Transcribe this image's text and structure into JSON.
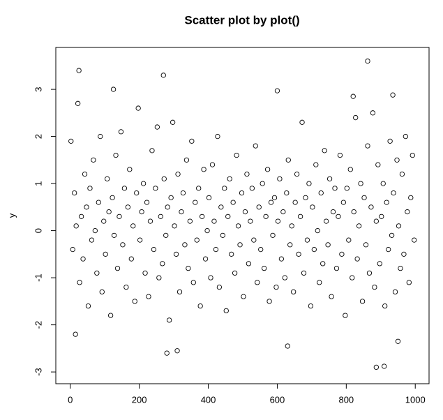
{
  "chart_data": {
    "type": "scatter",
    "title": "Scatter plot by plot()",
    "y_label": "y",
    "x": [
      2,
      7,
      12,
      17,
      22,
      27,
      32,
      37,
      42,
      47,
      52,
      57,
      62,
      67,
      72,
      77,
      82,
      87,
      92,
      97,
      102,
      107,
      112,
      117,
      122,
      127,
      132,
      137,
      142,
      147,
      152,
      157,
      162,
      167,
      172,
      177,
      182,
      187,
      192,
      197,
      202,
      207,
      212,
      217,
      222,
      227,
      232,
      237,
      242,
      247,
      252,
      257,
      262,
      267,
      272,
      277,
      282,
      287,
      292,
      297,
      302,
      307,
      312,
      317,
      322,
      327,
      332,
      337,
      342,
      347,
      352,
      357,
      362,
      367,
      372,
      377,
      382,
      387,
      392,
      397,
      402,
      407,
      412,
      417,
      422,
      427,
      432,
      437,
      442,
      447,
      452,
      457,
      462,
      467,
      472,
      477,
      482,
      487,
      492,
      497,
      502,
      507,
      512,
      517,
      522,
      527,
      532,
      537,
      542,
      547,
      552,
      557,
      562,
      567,
      572,
      577,
      582,
      587,
      592,
      597,
      602,
      607,
      612,
      617,
      622,
      627,
      632,
      637,
      642,
      647,
      652,
      657,
      662,
      667,
      672,
      677,
      682,
      687,
      692,
      697,
      702,
      707,
      712,
      717,
      722,
      727,
      732,
      737,
      742,
      747,
      752,
      757,
      762,
      767,
      772,
      777,
      782,
      787,
      792,
      797,
      802,
      807,
      812,
      817,
      822,
      827,
      832,
      837,
      842,
      847,
      852,
      857,
      862,
      867,
      872,
      877,
      882,
      887,
      892,
      897,
      902,
      907,
      912,
      917,
      922,
      927,
      932,
      937,
      942,
      947,
      952,
      957,
      962,
      967,
      972,
      977,
      982,
      987,
      992,
      997,
      25,
      270,
      862,
      600,
      125,
      887,
      910,
      280,
      310,
      630,
      15,
      950,
      820,
      935
    ],
    "values": [
      1.9,
      -0.4,
      0.8,
      0.1,
      2.7,
      -1.1,
      0.3,
      -0.6,
      1.2,
      0.5,
      -1.6,
      0.9,
      -0.2,
      1.5,
      0.0,
      -0.9,
      0.6,
      2.0,
      -1.3,
      0.2,
      -0.5,
      1.1,
      0.4,
      -1.8,
      0.7,
      -0.1,
      1.6,
      -0.8,
      0.3,
      2.1,
      -0.3,
      0.9,
      -1.2,
      0.5,
      1.3,
      -0.6,
      0.1,
      -1.5,
      0.8,
      2.6,
      -0.2,
      0.4,
      1.0,
      -0.9,
      0.6,
      -1.4,
      0.2,
      1.7,
      -0.4,
      0.9,
      2.2,
      -1.0,
      0.3,
      -0.7,
      1.1,
      -0.1,
      0.5,
      -1.9,
      0.7,
      2.3,
      0.1,
      -0.5,
      1.2,
      -1.3,
      0.4,
      0.8,
      -0.3,
      1.5,
      -0.8,
      0.2,
      1.9,
      -1.1,
      0.6,
      -0.2,
      0.9,
      -1.6,
      0.3,
      1.3,
      -0.6,
      0.0,
      0.7,
      -1.0,
      1.4,
      0.2,
      -0.4,
      2.0,
      -1.2,
      0.5,
      -0.1,
      0.9,
      -1.7,
      0.3,
      1.1,
      -0.5,
      0.6,
      -0.9,
      1.6,
      0.1,
      -0.3,
      0.8,
      -1.4,
      0.4,
      1.2,
      -0.7,
      0.2,
      0.9,
      -0.2,
      1.8,
      -1.1,
      0.5,
      -0.4,
      1.0,
      -0.8,
      0.3,
      1.3,
      -1.5,
      0.6,
      -0.1,
      0.7,
      -1.2,
      0.2,
      1.1,
      -0.6,
      0.4,
      -1.0,
      0.8,
      1.5,
      -0.3,
      0.1,
      -1.3,
      0.6,
      1.2,
      -0.5,
      0.3,
      2.3,
      -0.9,
      0.7,
      -0.2,
      1.0,
      -1.6,
      0.5,
      -0.4,
      1.4,
      0.0,
      -1.1,
      0.8,
      -0.7,
      1.7,
      0.2,
      -0.3,
      1.1,
      -1.4,
      0.4,
      0.9,
      -0.8,
      0.3,
      1.6,
      -0.5,
      0.6,
      -1.8,
      0.9,
      -0.2,
      1.3,
      -1.0,
      0.4,
      2.4,
      -0.6,
      0.1,
      1.0,
      -1.5,
      0.7,
      -0.3,
      1.8,
      -0.9,
      0.5,
      2.5,
      -1.2,
      0.2,
      1.4,
      -0.7,
      0.3,
      1.0,
      -1.6,
      0.6,
      -0.4,
      1.9,
      -0.1,
      0.8,
      -1.3,
      1.5,
      0.1,
      -0.8,
      1.2,
      -0.5,
      2.0,
      0.4,
      -1.1,
      0.7,
      1.6,
      -0.2,
      3.4,
      3.3,
      3.6,
      2.97,
      3.0,
      -2.9,
      -2.88,
      -2.6,
      -2.55,
      -2.45,
      -2.2,
      -2.35,
      2.85,
      2.88
    ],
    "color": "#000000",
    "xlim": [
      -42,
      1040
    ],
    "ylim": [
      -3.25,
      3.89
    ],
    "xticks": [
      0,
      200,
      400,
      600,
      800,
      1000
    ],
    "yticks": [
      -3,
      -2,
      -1,
      0,
      1,
      2,
      3
    ]
  }
}
